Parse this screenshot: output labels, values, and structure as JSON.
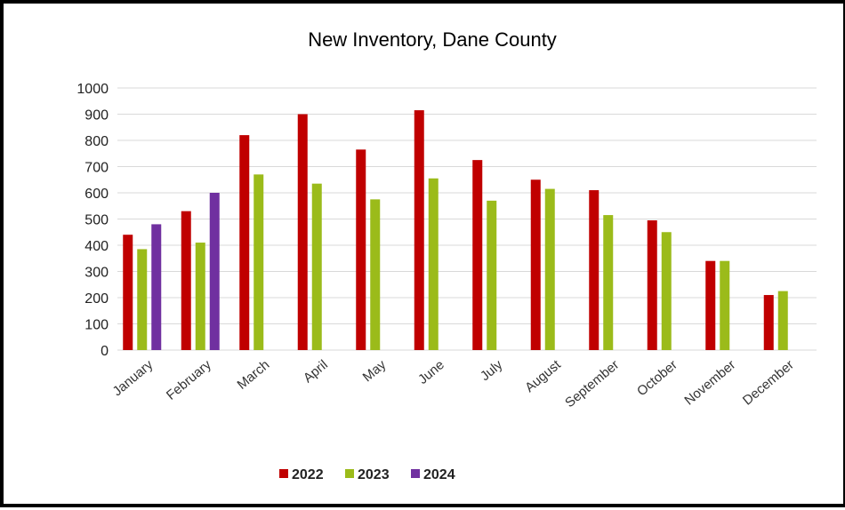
{
  "chart_data": {
    "type": "bar",
    "title": "New Inventory, Dane County",
    "xlabel": "",
    "ylabel": "",
    "ylim": [
      0,
      1000
    ],
    "yticks": [
      0,
      100,
      200,
      300,
      400,
      500,
      600,
      700,
      800,
      900,
      1000
    ],
    "grid": true,
    "legend_position": "bottom",
    "categories": [
      "January",
      "February",
      "March",
      "April",
      "May",
      "June",
      "July",
      "August",
      "September",
      "October",
      "November",
      "December"
    ],
    "series": [
      {
        "name": "2022",
        "color": "#c00000",
        "values": [
          440,
          530,
          820,
          900,
          765,
          915,
          725,
          650,
          610,
          495,
          340,
          210
        ]
      },
      {
        "name": "2023",
        "color": "#9bbb1a",
        "values": [
          385,
          410,
          670,
          635,
          575,
          655,
          570,
          615,
          515,
          450,
          340,
          225
        ]
      },
      {
        "name": "2024",
        "color": "#7030a0",
        "values": [
          480,
          600,
          null,
          null,
          null,
          null,
          null,
          null,
          null,
          null,
          null,
          null
        ]
      }
    ]
  }
}
